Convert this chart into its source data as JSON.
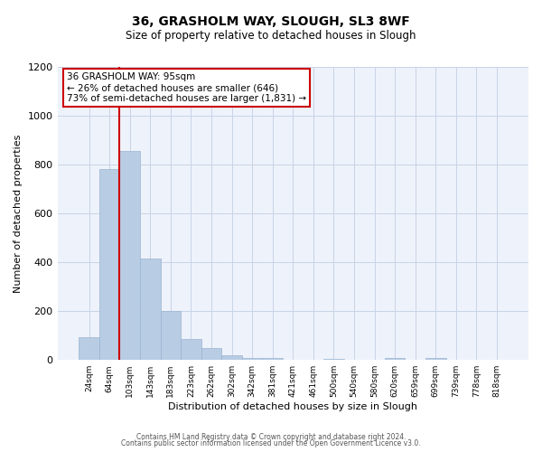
{
  "title": "36, GRASHOLM WAY, SLOUGH, SL3 8WF",
  "subtitle": "Size of property relative to detached houses in Slough",
  "xlabel": "Distribution of detached houses by size in Slough",
  "ylabel": "Number of detached properties",
  "bar_labels": [
    "24sqm",
    "64sqm",
    "103sqm",
    "143sqm",
    "183sqm",
    "223sqm",
    "262sqm",
    "302sqm",
    "342sqm",
    "381sqm",
    "421sqm",
    "461sqm",
    "500sqm",
    "540sqm",
    "580sqm",
    "620sqm",
    "659sqm",
    "699sqm",
    "739sqm",
    "778sqm",
    "818sqm"
  ],
  "bar_values": [
    95,
    780,
    855,
    415,
    200,
    85,
    50,
    20,
    10,
    8,
    0,
    0,
    5,
    0,
    0,
    10,
    0,
    8,
    0,
    0,
    0
  ],
  "bar_color": "#b8cce4",
  "bar_edge_color": "#9ab4d0",
  "grid_color": "#c8d4e8",
  "background_color": "#eef2fa",
  "vline_x_index": 2,
  "vline_color": "#cc0000",
  "annotation_text": "36 GRASHOLM WAY: 95sqm\n← 26% of detached houses are smaller (646)\n73% of semi-detached houses are larger (1,831) →",
  "annotation_box_color": "#ffffff",
  "annotation_border_color": "#cc0000",
  "ylim": [
    0,
    1200
  ],
  "yticks": [
    0,
    200,
    400,
    600,
    800,
    1000,
    1200
  ],
  "footer_line1": "Contains HM Land Registry data © Crown copyright and database right 2024.",
  "footer_line2": "Contains public sector information licensed under the Open Government Licence v3.0."
}
